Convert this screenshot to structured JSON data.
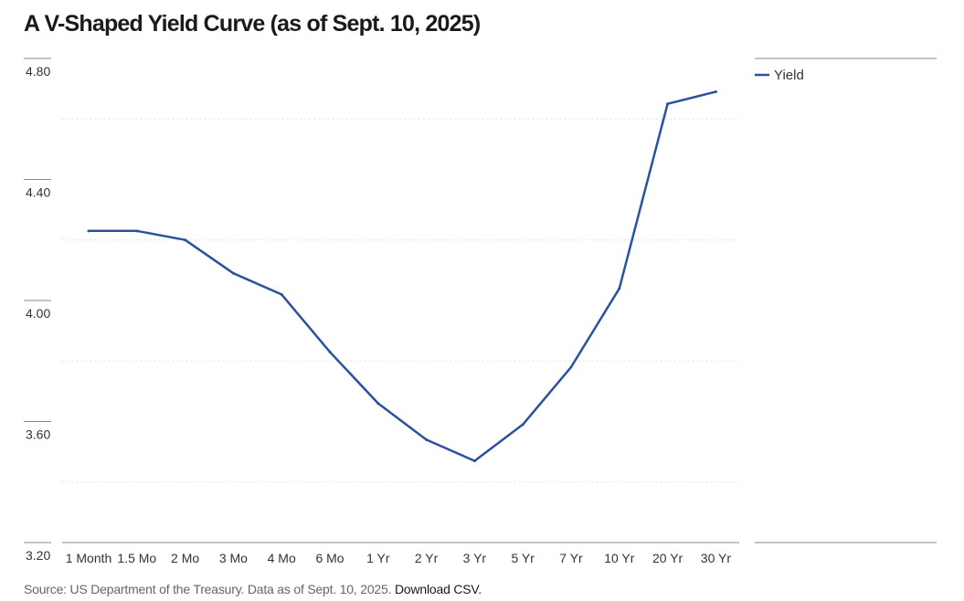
{
  "title": "A V-Shaped Yield Curve (as of Sept. 10, 2025)",
  "source": {
    "text": "Source: US Department of the Treasury. Data as of Sept. 10, 2025.",
    "link_label": "Download CSV."
  },
  "colors": {
    "series": "#2a52a0",
    "axis_line": "#888888",
    "grid": "#e2e2e2"
  },
  "chart_data": {
    "type": "line",
    "categories": [
      "1 Month",
      "1.5 Mo",
      "2 Mo",
      "3 Mo",
      "4 Mo",
      "6 Mo",
      "1 Yr",
      "2 Yr",
      "3 Yr",
      "5 Yr",
      "7 Yr",
      "10 Yr",
      "20 Yr",
      "30 Yr"
    ],
    "series": [
      {
        "name": "Yield",
        "values": [
          4.23,
          4.23,
          4.2,
          4.09,
          4.02,
          3.83,
          3.66,
          3.54,
          3.47,
          3.59,
          3.78,
          4.04,
          4.65,
          4.69
        ]
      }
    ],
    "y_ticks": [
      "4.80",
      "4.40",
      "4.00",
      "3.60",
      "3.20"
    ],
    "ylim": [
      3.2,
      4.8
    ],
    "grid": true,
    "legend": "top-right"
  }
}
